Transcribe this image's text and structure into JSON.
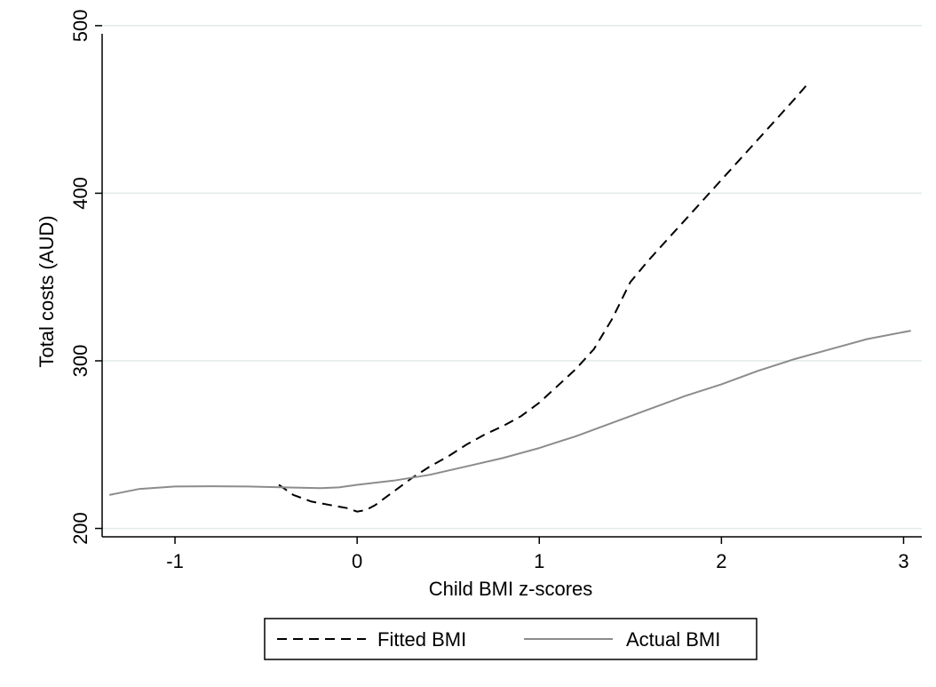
{
  "chart_data": {
    "type": "line",
    "title": "",
    "xlabel": "Child BMI z-scores",
    "ylabel": "Total costs (AUD)",
    "xlim": [
      -1.4,
      3.1
    ],
    "ylim": [
      195,
      510
    ],
    "xticks": [
      -1,
      0,
      1,
      2,
      3
    ],
    "yticks": [
      200,
      300,
      400,
      500
    ],
    "grid": "horizontal",
    "legend_position": "bottom",
    "colors": {
      "fitted": "#000000",
      "actual": "#8c8c8c",
      "grid": "#e1ece8"
    },
    "series": [
      {
        "name": "Fitted BMI",
        "style": "dashed",
        "x": [
          -0.43,
          -0.35,
          -0.25,
          -0.15,
          -0.05,
          0.0,
          0.05,
          0.1,
          0.2,
          0.3,
          0.4,
          0.5,
          0.6,
          0.7,
          0.8,
          0.9,
          1.0,
          1.1,
          1.2,
          1.3,
          1.4,
          1.5,
          1.6,
          1.7,
          1.8,
          1.9,
          2.0,
          2.1,
          2.2,
          2.3,
          2.4,
          2.48
        ],
        "values": [
          226,
          220,
          216,
          214,
          212,
          210,
          211,
          214,
          222,
          230,
          237,
          243,
          250,
          256,
          261,
          267,
          275,
          285,
          295,
          307,
          325,
          347,
          360,
          372,
          384,
          396,
          408,
          420,
          432,
          444,
          456,
          466
        ]
      },
      {
        "name": "Actual BMI",
        "style": "solid",
        "x": [
          -1.36,
          -1.2,
          -1.0,
          -0.8,
          -0.6,
          -0.4,
          -0.2,
          -0.1,
          0.0,
          0.2,
          0.4,
          0.6,
          0.8,
          1.0,
          1.2,
          1.4,
          1.6,
          1.8,
          2.0,
          2.2,
          2.4,
          2.6,
          2.8,
          3.04
        ],
        "values": [
          220,
          223.5,
          225,
          225.2,
          225,
          224.5,
          224,
          224.5,
          226,
          228.5,
          232,
          237,
          242,
          248,
          255,
          263,
          271,
          279,
          286,
          294,
          301,
          307,
          313,
          318
        ]
      }
    ]
  }
}
